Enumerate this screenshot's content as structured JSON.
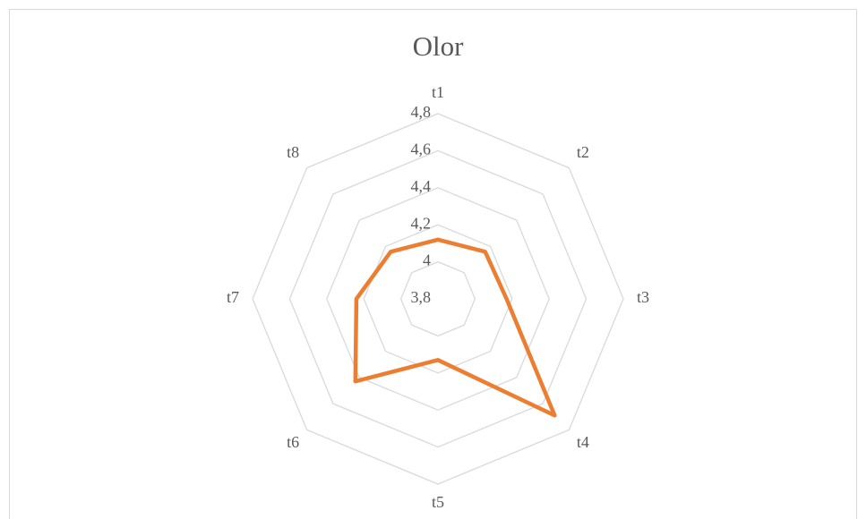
{
  "chart_data": {
    "type": "radar",
    "title": "Olor",
    "categories": [
      "t1",
      "t2",
      "t3",
      "t4",
      "t5",
      "t6",
      "t7",
      "t8"
    ],
    "series": [
      {
        "name": "Olor",
        "color": "#ed7d31",
        "values": [
          4.12,
          4.16,
          4.17,
          4.69,
          4.13,
          4.43,
          4.24,
          4.16
        ]
      }
    ],
    "ylim": [
      3.8,
      4.8
    ],
    "yticks": [
      {
        "value": 3.8,
        "label": "3,8"
      },
      4,
      {
        "value": 4.2,
        "label": "4,2"
      },
      {
        "value": 4.4,
        "label": "4,4"
      },
      {
        "value": 4.6,
        "label": "4,6"
      },
      {
        "value": 4.8,
        "label": "4,8"
      }
    ],
    "grid": true
  }
}
